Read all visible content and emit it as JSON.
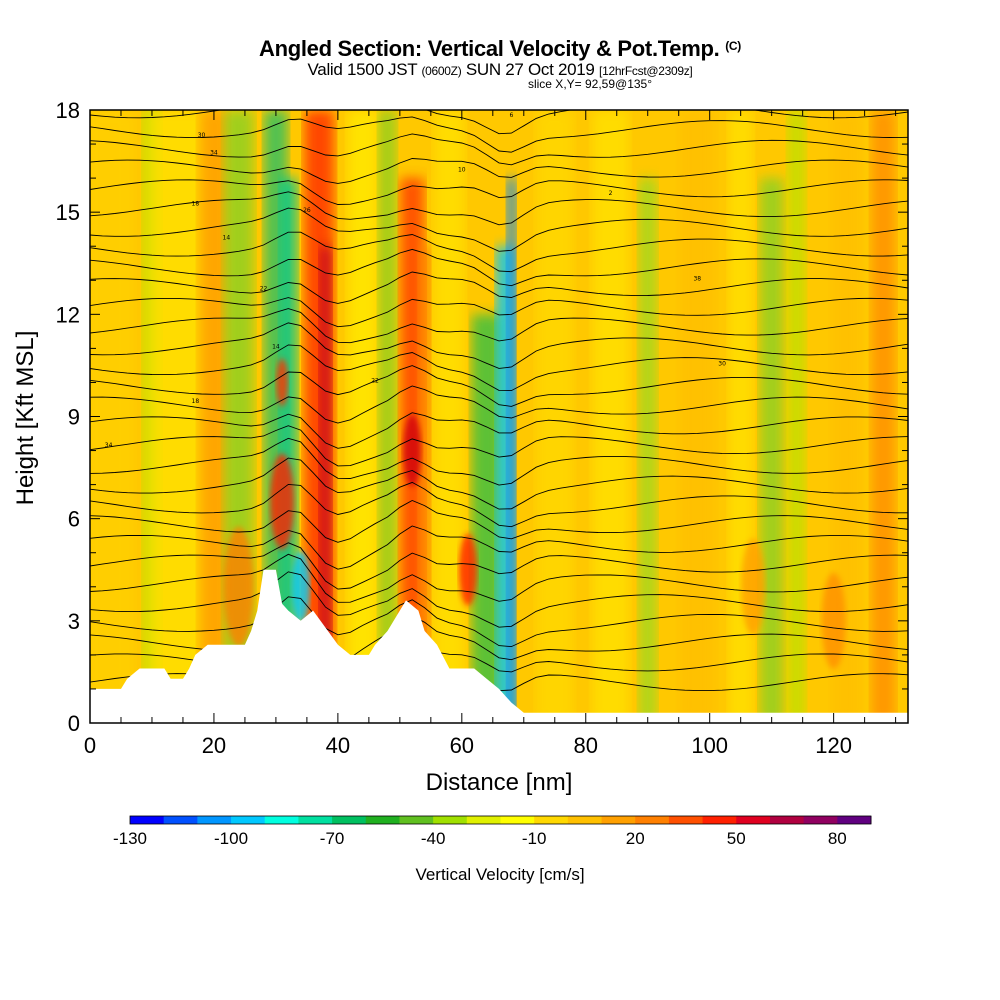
{
  "header": {
    "title": "Angled Section: Vertical Velocity & Pot.Temp.",
    "title_unit": "(C)",
    "valid_prefix": "Valid 1500 JST",
    "valid_utc": "(0600Z)",
    "valid_date": "SUN 27 Oct 2019",
    "forecast": "[12hrFcst@2309z]",
    "slice": "slice X,Y= 92,59@135°"
  },
  "chart_data": {
    "type": "heatmap",
    "xlabel": "Distance [nm]",
    "ylabel": "Height [Kft MSL]",
    "xlim": [
      0,
      132
    ],
    "ylim": [
      0,
      18
    ],
    "x_ticks": [
      "0",
      "20",
      "40",
      "60",
      "80",
      "100",
      "120"
    ],
    "x_tick_values": [
      0,
      20,
      40,
      60,
      80,
      100,
      120
    ],
    "y_ticks": [
      "0",
      "3",
      "6",
      "9",
      "12",
      "15",
      "18"
    ],
    "y_tick_values": [
      0,
      3,
      6,
      9,
      12,
      15,
      18
    ],
    "colorbar": {
      "label": "Vertical Velocity [cm/s]",
      "tick_labels": [
        "-130",
        "-100",
        "-70",
        "-40",
        "-10",
        "20",
        "50",
        "80"
      ],
      "colors": [
        "#0000ff",
        "#0050ff",
        "#0096ff",
        "#00c8ff",
        "#00ffe0",
        "#00e0a0",
        "#00c060",
        "#20b020",
        "#60c020",
        "#a0e000",
        "#e0f000",
        "#ffff00",
        "#ffd800",
        "#ffc000",
        "#ffa000",
        "#ff8000",
        "#ff5000",
        "#ff2000",
        "#e00020",
        "#b00040",
        "#900060",
        "#600080"
      ]
    },
    "terrain_kft": [
      [
        0,
        1.0
      ],
      [
        5,
        1.0
      ],
      [
        6,
        1.3
      ],
      [
        8,
        1.6
      ],
      [
        12,
        1.6
      ],
      [
        13,
        1.3
      ],
      [
        15,
        1.3
      ],
      [
        16,
        1.6
      ],
      [
        17,
        2.0
      ],
      [
        19,
        2.3
      ],
      [
        25,
        2.3
      ],
      [
        26,
        2.7
      ],
      [
        27,
        3.3
      ],
      [
        28,
        4.5
      ],
      [
        30,
        4.5
      ],
      [
        31,
        3.5
      ],
      [
        32,
        3.3
      ],
      [
        34,
        3.0
      ],
      [
        36,
        3.3
      ],
      [
        38,
        2.8
      ],
      [
        40,
        2.3
      ],
      [
        42,
        2.0
      ],
      [
        45,
        2.0
      ],
      [
        46,
        2.3
      ],
      [
        48,
        2.7
      ],
      [
        50,
        3.3
      ],
      [
        51,
        3.6
      ],
      [
        53,
        3.3
      ],
      [
        54,
        2.7
      ],
      [
        56,
        2.3
      ],
      [
        58,
        1.6
      ],
      [
        62,
        1.6
      ],
      [
        64,
        1.3
      ],
      [
        66,
        1.0
      ],
      [
        68,
        0.6
      ],
      [
        70,
        0.3
      ],
      [
        132,
        0.3
      ]
    ],
    "contour_labels": [
      "30",
      "34",
      "18",
      "14",
      "22",
      "26",
      "10",
      "6",
      "2",
      "38"
    ]
  }
}
